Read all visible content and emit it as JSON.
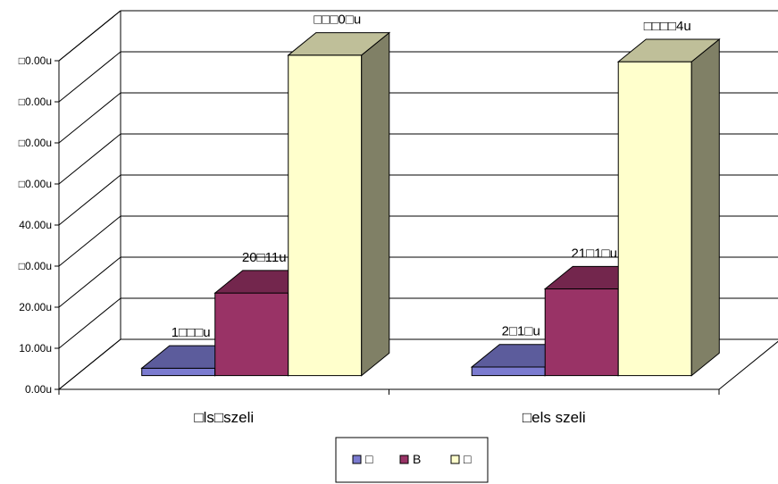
{
  "chart_data": {
    "type": "bar",
    "title": "",
    "xlabel": "",
    "ylabel": "",
    "ylim": [
      0,
      80
    ],
    "y_ticks": [
      "0.00u",
      "10.00u",
      "20.00u",
      "□0.00u",
      "40.00u",
      "□0.00u",
      "□0.00u",
      "□0.00u",
      "□0.00u"
    ],
    "categories": [
      "□ls□szeli",
      "□els szeli"
    ],
    "grid": true,
    "legend_position": "bottom",
    "series": [
      {
        "name": "□",
        "values": [
          1.8,
          2.1
        ],
        "labels": [
          "1□□□u",
          "2□1□u"
        ],
        "color": "#7b7bd0"
      },
      {
        "name": "B",
        "values": [
          20.11,
          21.1
        ],
        "labels": [
          "20□11u",
          "21□1□u"
        ],
        "color": "#993366"
      },
      {
        "name": "□",
        "values": [
          78.0,
          76.4
        ],
        "labels": [
          "□□□0□u",
          "□□□□4u"
        ],
        "color": "#ffffcc"
      }
    ]
  }
}
